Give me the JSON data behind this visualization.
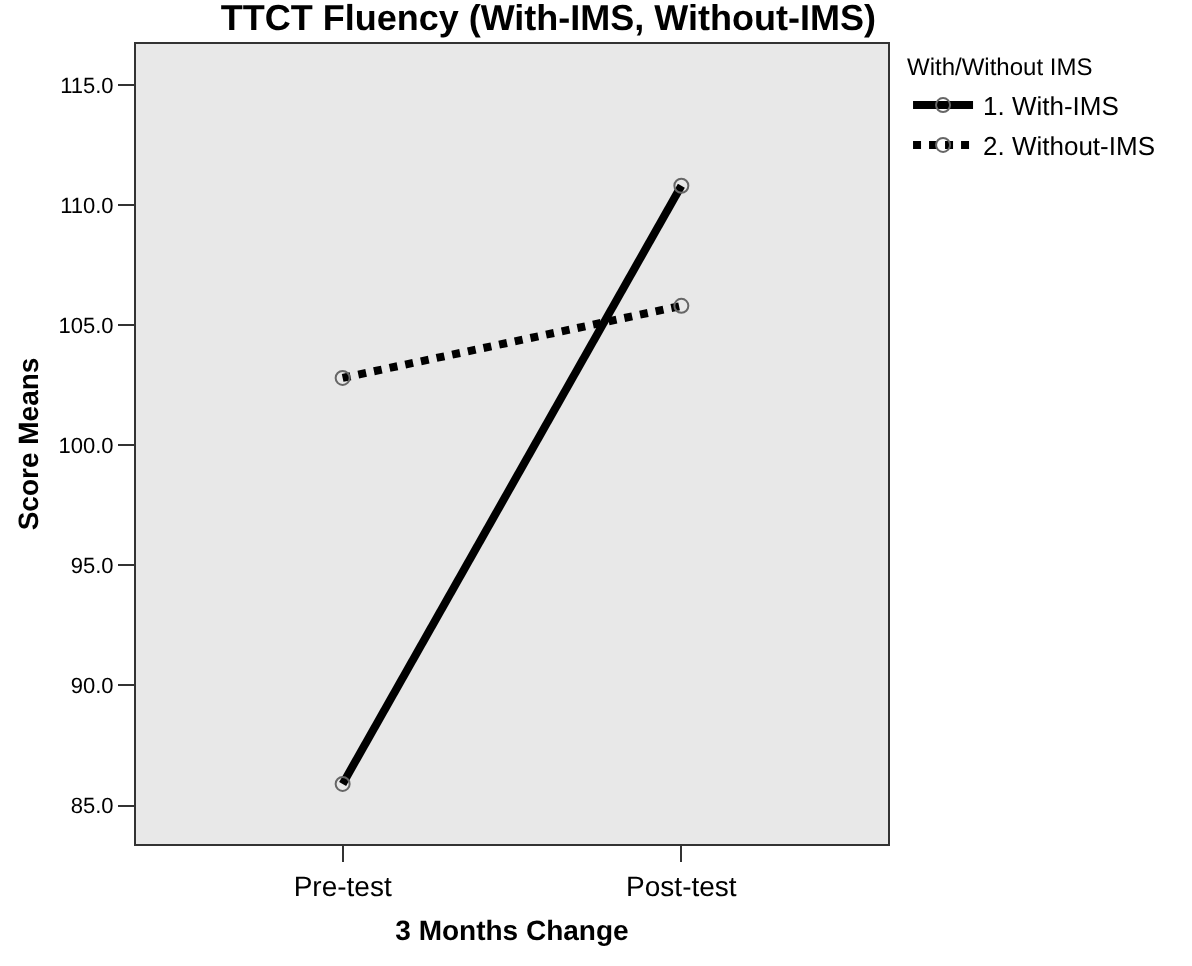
{
  "chart_data": {
    "type": "line",
    "title": "TTCT Fluency (With-IMS, Without-IMS)",
    "xlabel": "3 Months Change",
    "ylabel": "Score Means",
    "legend_title": "With/Without IMS",
    "categories": [
      "Pre-test",
      "Post-test"
    ],
    "series": [
      {
        "name": "1. With-IMS",
        "color": "#000000",
        "values": [
          85.9,
          110.8
        ],
        "line_style": "solid"
      },
      {
        "name": "2. Without-IMS",
        "color": "#000000",
        "values": [
          102.8,
          105.8
        ],
        "line_style": "dotted"
      }
    ],
    "ylim": [
      83.4,
      116.7
    ],
    "yticks": [
      {
        "value": 85,
        "label": "85.0"
      },
      {
        "value": 90,
        "label": "90.0"
      },
      {
        "value": 95,
        "label": "95.0"
      },
      {
        "value": 100,
        "label": "100.0"
      },
      {
        "value": 105,
        "label": "105.0"
      },
      {
        "value": 110,
        "label": "110.0"
      },
      {
        "value": 115,
        "label": "115.0"
      }
    ],
    "marker": "circle",
    "grid": false,
    "legend": "top right"
  }
}
